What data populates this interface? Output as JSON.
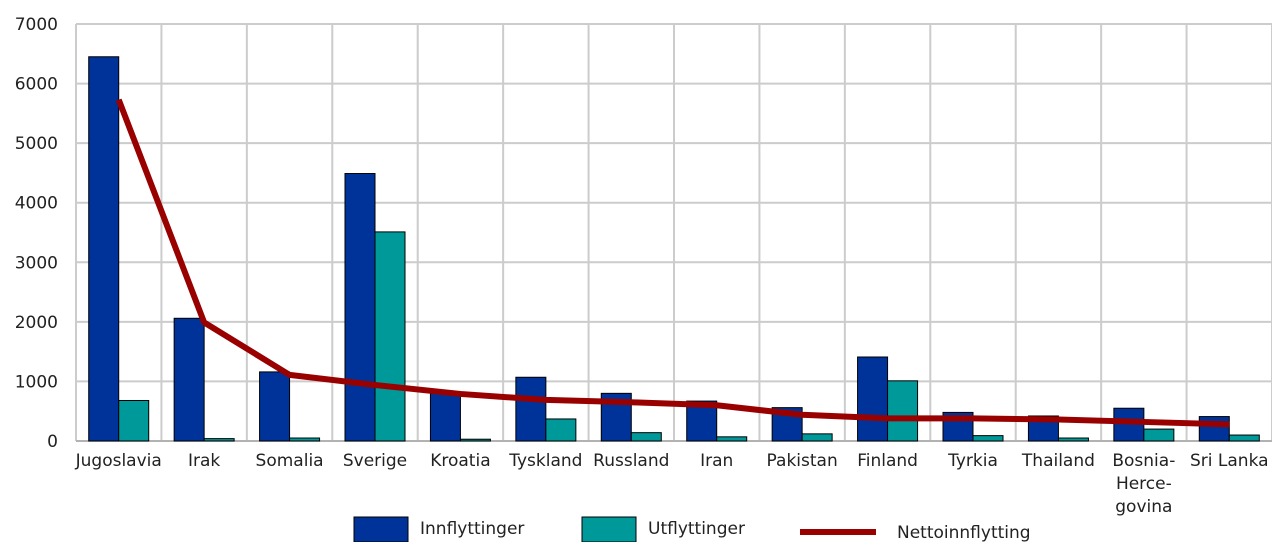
{
  "chart_data": {
    "type": "bar",
    "title": "",
    "xlabel": "",
    "ylabel": "",
    "ylim": [
      0,
      7000
    ],
    "yticks": [
      0,
      1000,
      2000,
      3000,
      4000,
      5000,
      6000,
      7000
    ],
    "grid": true,
    "legend_position": "bottom",
    "categories": [
      [
        "Jugoslavia"
      ],
      [
        "Irak"
      ],
      [
        "Somalia"
      ],
      [
        "Sverige"
      ],
      [
        "Kroatia"
      ],
      [
        "Tyskland"
      ],
      [
        "Russland"
      ],
      [
        "Iran"
      ],
      [
        "Pakistan"
      ],
      [
        "Finland"
      ],
      [
        "Tyrkia"
      ],
      [
        "Thailand"
      ],
      [
        "Bosnia-",
        "Herce-",
        "govina"
      ],
      [
        "Sri Lanka"
      ]
    ],
    "series": [
      {
        "name": "Innflyttinger",
        "type": "bar",
        "color": "#003399",
        "values": [
          6450,
          2060,
          1160,
          4490,
          830,
          1070,
          800,
          670,
          560,
          1410,
          480,
          420,
          550,
          410
        ]
      },
      {
        "name": "Utflyttinger",
        "type": "bar",
        "color": "#009999",
        "values": [
          680,
          40,
          50,
          3510,
          30,
          370,
          140,
          70,
          120,
          1010,
          90,
          50,
          200,
          100
        ]
      },
      {
        "name": "Nettoinnflytting",
        "type": "line",
        "color": "#990000",
        "values": [
          5730,
          1990,
          1110,
          940,
          790,
          690,
          650,
          600,
          440,
          380,
          380,
          360,
          320,
          280
        ]
      }
    ]
  }
}
